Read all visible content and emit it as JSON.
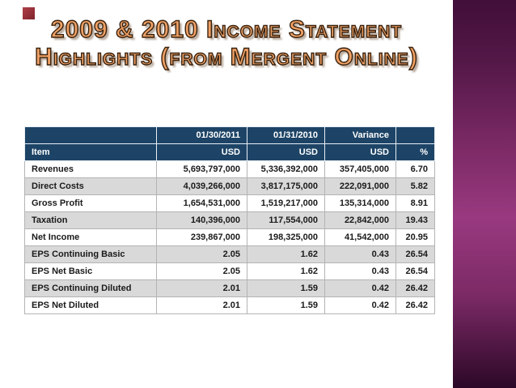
{
  "slide": {
    "title_line1": "2009 & 2010 Income Statement",
    "title_line2": "Highlights (from Mergent Online)"
  },
  "table": {
    "header_row1": [
      "",
      "01/30/2011",
      "01/31/2010",
      "Variance",
      ""
    ],
    "header_row2": [
      "Item",
      "USD",
      "USD",
      "USD",
      "%"
    ],
    "rows": [
      [
        "Revenues",
        "5,693,797,000",
        "5,336,392,000",
        "357,405,000",
        "6.70"
      ],
      [
        "Direct Costs",
        "4,039,266,000",
        "3,817,175,000",
        "222,091,000",
        "5.82"
      ],
      [
        "Gross Profit",
        "1,654,531,000",
        "1,519,217,000",
        "135,314,000",
        "8.91"
      ],
      [
        "Taxation",
        "140,396,000",
        "117,554,000",
        "22,842,000",
        "19.43"
      ],
      [
        "Net Income",
        "239,867,000",
        "198,325,000",
        "41,542,000",
        "20.95"
      ],
      [
        "EPS Continuing Basic",
        "2.05",
        "1.62",
        "0.43",
        "26.54"
      ],
      [
        "EPS Net Basic",
        "2.05",
        "1.62",
        "0.43",
        "26.54"
      ],
      [
        "EPS Continuing Diluted",
        "2.01",
        "1.59",
        "0.42",
        "26.42"
      ],
      [
        "EPS Net Diluted",
        "2.01",
        "1.59",
        "0.42",
        "26.42"
      ]
    ]
  },
  "colors": {
    "header_bg": "#1D4466",
    "row_alt_bg": "#D9D9D9",
    "title_fill": "#F0A165",
    "title_outline": "#39220E",
    "accent_square": "#8A242E",
    "side_band_purple": "#7C2A66"
  }
}
